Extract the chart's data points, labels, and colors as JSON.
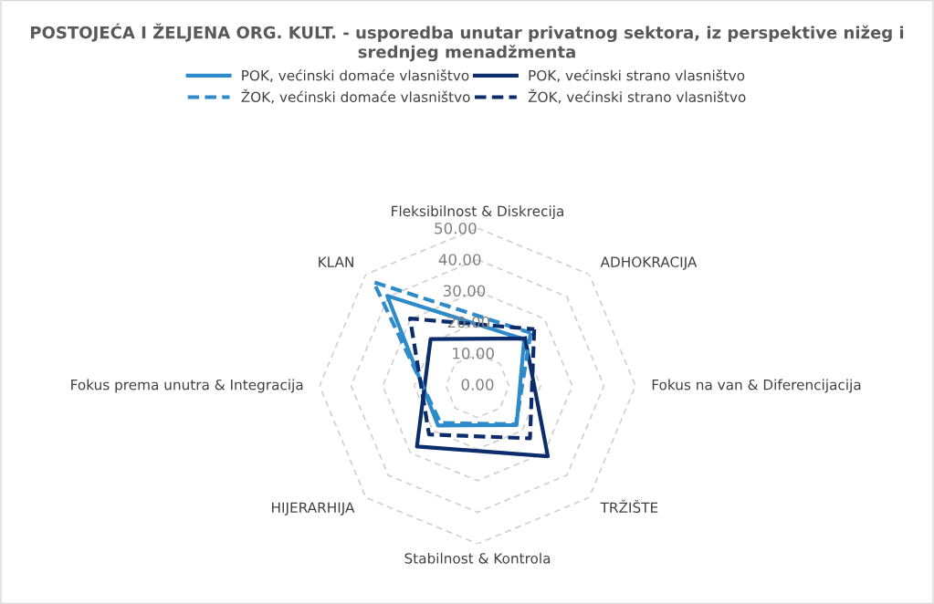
{
  "chart_data": {
    "type": "radar",
    "title": "POSTOJEĆA I ŽELJENA ORG. KULT. - usporedba unutar privatnog sektora, iz perspektive nižeg i srednjeg menadžmenta",
    "categories": [
      "Fleksibilnost & Diskrecija",
      "ADHOKRACIJA",
      "Fokus na van & Diferencijacija",
      "TRŽIŠTE",
      "Stabilnost & Kontrola",
      "HIJERARHIJA",
      "Fokus prema unutra & Integracija",
      "KLAN"
    ],
    "series": [
      {
        "name": "POK, većinski domaće vlasništvo",
        "color": "#2e8bc9",
        "line_style": "solid",
        "values": [
          null,
          20.9,
          null,
          17.5,
          null,
          17.7,
          null,
          40.4
        ]
      },
      {
        "name": "POK, većinski strano vlasništvo",
        "color": "#0c2c6c",
        "line_style": "solid",
        "values": [
          null,
          21.3,
          null,
          31.5,
          null,
          27.1,
          null,
          21.0
        ]
      },
      {
        "name": "ŽOK, većinski domaće vlasništvo",
        "color": "#2e8bc9",
        "line_style": "dashed",
        "values": [
          null,
          23.8,
          null,
          17.2,
          null,
          16.6,
          null,
          46.5
        ]
      },
      {
        "name": "ŽOK, većinski strano vlasništvo",
        "color": "#0c2c6c",
        "line_style": "dashed",
        "values": [
          null,
          25.4,
          null,
          23.5,
          null,
          21.7,
          null,
          30.2
        ]
      }
    ],
    "ylim": [
      0,
      50
    ],
    "yticks": [
      {
        "value": 0,
        "label": "0.00"
      },
      {
        "value": 10,
        "label": "10.00"
      },
      {
        "value": 20,
        "label": "20.00"
      },
      {
        "value": 30,
        "label": "30.00"
      },
      {
        "value": 40,
        "label": "40.00"
      },
      {
        "value": 50,
        "label": "50.00"
      }
    ],
    "grid": true,
    "legend": "top",
    "marker": "none"
  }
}
